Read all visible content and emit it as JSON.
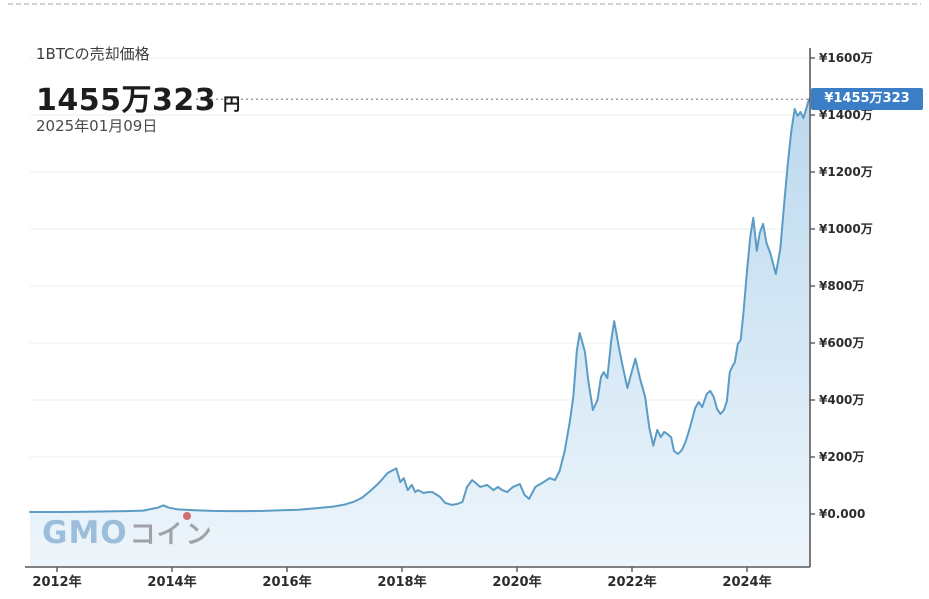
{
  "header": {
    "title": "1BTCの売却価格",
    "price_value": "1455万323",
    "price_unit": "円",
    "date": "2025年01月09日"
  },
  "badge": {
    "label": "¥1455万323"
  },
  "logo": {
    "gmo": "GMO",
    "coin_a": "コイ",
    "coin_b": "ン"
  },
  "chart_data": {
    "type": "area",
    "title": "1BTCの売却価格",
    "currency": "JPY",
    "current_price_yen": 14550323,
    "current_price_label": "¥1455万323",
    "as_of_date": "2025年01月09日",
    "xlabel": "",
    "ylabel": "",
    "xlim_years": [
      2011.5,
      2025.15
    ],
    "ylim_man_yen": [
      0,
      1600
    ],
    "grid": "horizontal-only",
    "y_axis_side": "right",
    "x_ticks": [
      {
        "year": 2012,
        "label": "2012年"
      },
      {
        "year": 2014,
        "label": "2014年"
      },
      {
        "year": 2016,
        "label": "2016年"
      },
      {
        "year": 2018,
        "label": "2018年"
      },
      {
        "year": 2020,
        "label": "2020年"
      },
      {
        "year": 2022,
        "label": "2022年"
      },
      {
        "year": 2024,
        "label": "2024年"
      }
    ],
    "y_ticks": [
      {
        "value_man": 1600,
        "label": "¥1600万"
      },
      {
        "value_man": 1400,
        "label": "¥1400万"
      },
      {
        "value_man": 1200,
        "label": "¥1200万"
      },
      {
        "value_man": 1000,
        "label": "¥1000万"
      },
      {
        "value_man": 800,
        "label": "¥800万"
      },
      {
        "value_man": 600,
        "label": "¥600万"
      },
      {
        "value_man": 400,
        "label": "¥400万"
      },
      {
        "value_man": 200,
        "label": "¥200万"
      },
      {
        "value_man": 0,
        "label": "¥0.000"
      }
    ],
    "series": [
      {
        "name": "1BTCの売却価格",
        "unit": "万円",
        "points_year_price_man": [
          [
            2011.53,
            7
          ],
          [
            2011.8,
            7
          ],
          [
            2012.1,
            7
          ],
          [
            2012.5,
            8
          ],
          [
            2012.9,
            9
          ],
          [
            2013.2,
            10
          ],
          [
            2013.5,
            12
          ],
          [
            2013.75,
            22
          ],
          [
            2013.85,
            30
          ],
          [
            2013.95,
            22
          ],
          [
            2014.1,
            16
          ],
          [
            2014.4,
            13
          ],
          [
            2014.7,
            11
          ],
          [
            2015.0,
            10
          ],
          [
            2015.3,
            10
          ],
          [
            2015.6,
            11
          ],
          [
            2015.9,
            13
          ],
          [
            2016.2,
            15
          ],
          [
            2016.5,
            20
          ],
          [
            2016.8,
            26
          ],
          [
            2017.0,
            33
          ],
          [
            2017.15,
            42
          ],
          [
            2017.3,
            56
          ],
          [
            2017.45,
            81
          ],
          [
            2017.6,
            109
          ],
          [
            2017.75,
            144
          ],
          [
            2017.9,
            160
          ],
          [
            2017.97,
            112
          ],
          [
            2018.03,
            126
          ],
          [
            2018.1,
            84
          ],
          [
            2018.17,
            102
          ],
          [
            2018.23,
            77
          ],
          [
            2018.28,
            84
          ],
          [
            2018.37,
            74
          ],
          [
            2018.45,
            77
          ],
          [
            2018.53,
            77
          ],
          [
            2018.66,
            60
          ],
          [
            2018.75,
            39
          ],
          [
            2018.87,
            32
          ],
          [
            2018.96,
            35
          ],
          [
            2019.05,
            42
          ],
          [
            2019.13,
            95
          ],
          [
            2019.22,
            119
          ],
          [
            2019.28,
            109
          ],
          [
            2019.36,
            95
          ],
          [
            2019.48,
            102
          ],
          [
            2019.59,
            84
          ],
          [
            2019.67,
            95
          ],
          [
            2019.74,
            84
          ],
          [
            2019.83,
            77
          ],
          [
            2019.93,
            95
          ],
          [
            2020.05,
            105
          ],
          [
            2020.13,
            67
          ],
          [
            2020.21,
            53
          ],
          [
            2020.32,
            95
          ],
          [
            2020.46,
            112
          ],
          [
            2020.57,
            126
          ],
          [
            2020.66,
            119
          ],
          [
            2020.74,
            151
          ],
          [
            2020.83,
            221
          ],
          [
            2020.92,
            326
          ],
          [
            2020.98,
            414
          ],
          [
            2021.04,
            572
          ],
          [
            2021.09,
            635
          ],
          [
            2021.18,
            570
          ],
          [
            2021.24,
            467
          ],
          [
            2021.32,
            365
          ],
          [
            2021.4,
            400
          ],
          [
            2021.46,
            481
          ],
          [
            2021.51,
            498
          ],
          [
            2021.57,
            477
          ],
          [
            2021.64,
            610
          ],
          [
            2021.69,
            677
          ],
          [
            2021.77,
            586
          ],
          [
            2021.84,
            516
          ],
          [
            2021.92,
            442
          ],
          [
            2022.0,
            502
          ],
          [
            2022.06,
            545
          ],
          [
            2022.14,
            474
          ],
          [
            2022.23,
            410
          ],
          [
            2022.3,
            305
          ],
          [
            2022.37,
            240
          ],
          [
            2022.44,
            295
          ],
          [
            2022.5,
            270
          ],
          [
            2022.56,
            288
          ],
          [
            2022.62,
            280
          ],
          [
            2022.68,
            270
          ],
          [
            2022.73,
            221
          ],
          [
            2022.8,
            211
          ],
          [
            2022.87,
            225
          ],
          [
            2022.93,
            253
          ],
          [
            2023.0,
            298
          ],
          [
            2023.1,
            372
          ],
          [
            2023.16,
            393
          ],
          [
            2023.22,
            375
          ],
          [
            2023.3,
            421
          ],
          [
            2023.36,
            432
          ],
          [
            2023.42,
            411
          ],
          [
            2023.48,
            368
          ],
          [
            2023.54,
            351
          ],
          [
            2023.6,
            365
          ],
          [
            2023.65,
            397
          ],
          [
            2023.7,
            498
          ],
          [
            2023.74,
            516
          ],
          [
            2023.79,
            533
          ],
          [
            2023.84,
            597
          ],
          [
            2023.89,
            611
          ],
          [
            2023.94,
            712
          ],
          [
            2024.0,
            853
          ],
          [
            2024.06,
            976
          ],
          [
            2024.11,
            1039
          ],
          [
            2024.17,
            923
          ],
          [
            2024.22,
            986
          ],
          [
            2024.28,
            1018
          ],
          [
            2024.34,
            951
          ],
          [
            2024.41,
            912
          ],
          [
            2024.5,
            842
          ],
          [
            2024.58,
            930
          ],
          [
            2024.65,
            1098
          ],
          [
            2024.71,
            1228
          ],
          [
            2024.77,
            1344
          ],
          [
            2024.83,
            1421
          ],
          [
            2024.88,
            1397
          ],
          [
            2024.93,
            1411
          ],
          [
            2024.98,
            1389
          ],
          [
            2025.08,
            1455.03
          ]
        ]
      }
    ],
    "colors": {
      "line": "#5b9cc5",
      "area_top": "#bcd9ee",
      "area_bottom": "#edf5fb",
      "grid": "#ececef",
      "axis": "#58595b",
      "tick_label": "#2b2b2b",
      "leader_dots": "#9b9b9b",
      "badge": "#3c7ec5",
      "top_dashed_border": "#c4c4c4"
    }
  }
}
